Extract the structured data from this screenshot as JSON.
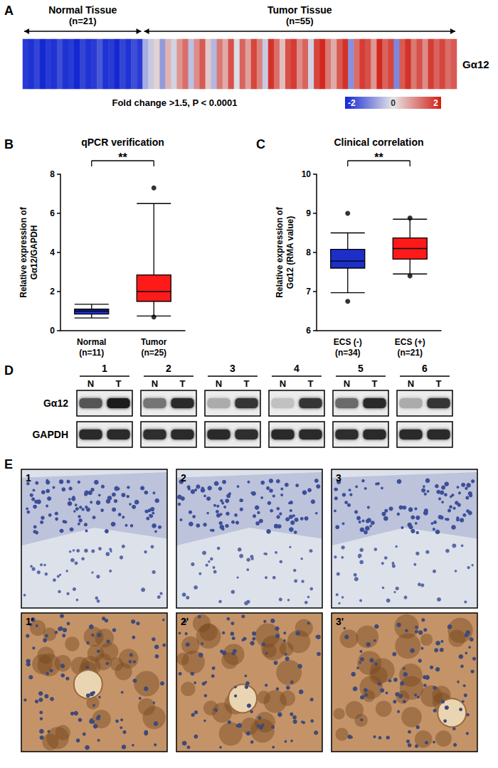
{
  "chart_data": [
    {
      "type": "heatmap",
      "panel_label": "A",
      "groups": [
        {
          "label": "Normal Tissue",
          "n_label": "(n=21)",
          "count": 21
        },
        {
          "label": "Tumor Tissue",
          "n_label": "(n=55)",
          "count": 55
        }
      ],
      "row_label": "Gα12",
      "caption": "Fold change >1.5, P < 0.0001",
      "values": [
        -1.8,
        -1.9,
        -1.7,
        -2,
        -1.8,
        -1.9,
        -1.6,
        -1.9,
        -1.8,
        -2,
        -1.7,
        -1.9,
        -1.8,
        -1.5,
        -1.9,
        -1.8,
        -2,
        -1.7,
        -1.9,
        -1.6,
        -1.8,
        -0.6,
        -0.3,
        0.2,
        -0.8,
        0.5,
        -0.2,
        0.8,
        1.2,
        -0.4,
        0.9,
        1.4,
        0.3,
        -0.5,
        1.1,
        0.6,
        1.5,
        -0.1,
        1.3,
        0.7,
        1.6,
        1.0,
        -0.3,
        1.8,
        1.2,
        0.4,
        1.5,
        1.7,
        0.9,
        1.3,
        -0.2,
        1.6,
        1.9,
        1.1,
        0.6,
        1.4,
        1.8,
        -0.9,
        1.2,
        1.7,
        1.5,
        0.8,
        1.9,
        1.3,
        1.6,
        -1.0,
        1.4,
        1.8,
        1.1,
        1.5,
        0.9,
        1.7,
        1.3,
        1.6,
        1.2,
        1.4
      ],
      "colorbar": {
        "range": [
          -2,
          2
        ],
        "ticks": [
          -2,
          0,
          2
        ]
      }
    },
    {
      "type": "boxplot",
      "panel_label": "B",
      "title": "qPCR verification",
      "categories": [
        "Normal\n(n=11)",
        "Tumor\n(n=25)"
      ],
      "boxes": [
        [
          0.65,
          0.85,
          1.0,
          1.1,
          1.35
        ],
        [
          0.75,
          1.5,
          2.0,
          2.85,
          6.5
        ]
      ],
      "outliers": [
        [],
        [
          0.7,
          7.3
        ]
      ],
      "colors": [
        "#1d2fc8",
        "#ff1a1a"
      ],
      "ylabel": "Relative expression of\nGα12/GAPDH",
      "ylim": [
        0,
        8
      ],
      "yticks": [
        0,
        2,
        4,
        6,
        8
      ],
      "significance": "**"
    },
    {
      "type": "boxplot",
      "panel_label": "C",
      "title": "Clinical correlation",
      "categories": [
        "ECS (-)\n(n=34)",
        "ECS (+)\n(n=21)"
      ],
      "boxes": [
        [
          6.97,
          7.6,
          7.78,
          8.08,
          8.5
        ],
        [
          7.45,
          7.83,
          8.1,
          8.37,
          8.85
        ]
      ],
      "outliers": [
        [
          6.75,
          9.0
        ],
        [
          7.4,
          8.88
        ]
      ],
      "colors": [
        "#1d2fc8",
        "#ff1a1a"
      ],
      "ylabel": "Relative expression of\nGα12 (RMA value)",
      "ylim": [
        6,
        10
      ],
      "yticks": [
        6,
        7,
        8,
        9,
        10
      ],
      "significance": "**"
    },
    {
      "type": "blot",
      "panel_label": "D",
      "samples": [
        "1",
        "2",
        "3",
        "4",
        "5",
        "6"
      ],
      "lanes": [
        "N",
        "T"
      ],
      "rows": [
        {
          "label": "Gα12",
          "intensity": [
            [
              0.7,
              0.95
            ],
            [
              0.55,
              0.9
            ],
            [
              0.3,
              0.85
            ],
            [
              0.2,
              0.85
            ],
            [
              0.6,
              0.9
            ],
            [
              0.3,
              0.85
            ]
          ]
        },
        {
          "label": "GAPDH",
          "intensity": [
            [
              0.9,
              0.9
            ],
            [
              0.88,
              0.9
            ],
            [
              0.9,
              0.88
            ],
            [
              0.9,
              0.9
            ],
            [
              0.88,
              0.9
            ],
            [
              0.9,
              0.9
            ]
          ]
        }
      ]
    },
    {
      "type": "image_grid",
      "panel_label": "E",
      "labels": [
        [
          "1",
          "2",
          "3"
        ],
        [
          "1'",
          "2'",
          "3'"
        ]
      ]
    }
  ]
}
